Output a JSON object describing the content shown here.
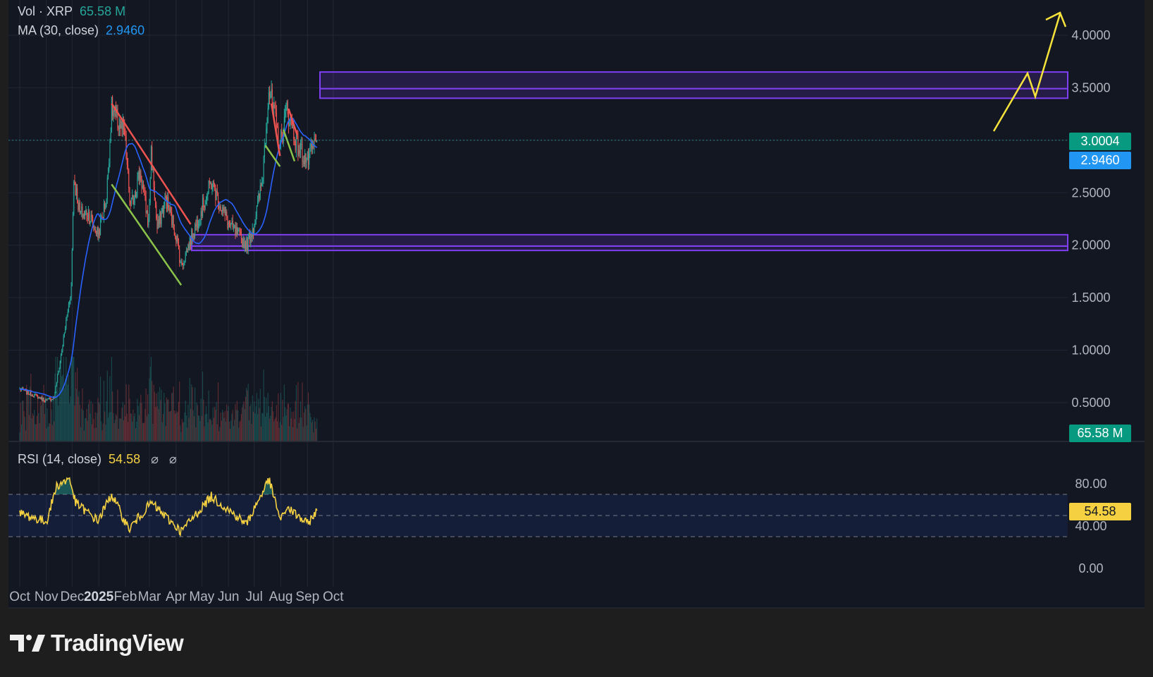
{
  "header": {
    "vol_label": "Vol · XRP",
    "vol_value": "65.58 M",
    "ma_label": "MA (30, close)",
    "ma_value": "2.9460",
    "rsi_label": "RSI (14, close)",
    "rsi_value": "54.58",
    "rsi_extra_1": "⌀",
    "rsi_extra_2": "⌀"
  },
  "branding": {
    "logo_text": "TradingView"
  },
  "colors": {
    "background": "#131722",
    "up": "#26a69a",
    "down": "#ef5350",
    "ma": "#2962ff",
    "zone": "#7e3ff2",
    "rsi": "#f5d142",
    "wedge_upper": "#ef5350",
    "wedge_lower": "#8bc34a",
    "projection": "#f5e33b"
  },
  "chart_data": [
    {
      "type": "candlestick",
      "symbol": "XRP",
      "x_ticks": [
        "Oct",
        "Nov",
        "Dec",
        "2025",
        "Feb",
        "Mar",
        "Apr",
        "May",
        "Jun",
        "Jul",
        "Aug",
        "Sep",
        "Oct"
      ],
      "y_ticks": [
        "4.0000",
        "3.5000",
        "2.5000",
        "2.0000",
        "1.5000",
        "1.0000",
        "0.5000"
      ],
      "ylim": [
        0.2,
        4.2
      ],
      "close_key_points": [
        {
          "date": "2024-10-01",
          "close": 0.63
        },
        {
          "date": "2024-11-01",
          "close": 0.52
        },
        {
          "date": "2024-11-10",
          "close": 0.55
        },
        {
          "date": "2024-11-20",
          "close": 1.05
        },
        {
          "date": "2024-11-30",
          "close": 1.6
        },
        {
          "date": "2024-12-03",
          "close": 2.65
        },
        {
          "date": "2024-12-10",
          "close": 2.3
        },
        {
          "date": "2024-12-20",
          "close": 2.3
        },
        {
          "date": "2024-12-31",
          "close": 2.1
        },
        {
          "date": "2025-01-10",
          "close": 2.45
        },
        {
          "date": "2025-01-16",
          "close": 3.3
        },
        {
          "date": "2025-01-31",
          "close": 3.05
        },
        {
          "date": "2025-02-07",
          "close": 2.35
        },
        {
          "date": "2025-02-18",
          "close": 2.7
        },
        {
          "date": "2025-02-28",
          "close": 2.2
        },
        {
          "date": "2025-03-03",
          "close": 2.9
        },
        {
          "date": "2025-03-10",
          "close": 2.15
        },
        {
          "date": "2025-03-20",
          "close": 2.45
        },
        {
          "date": "2025-04-01",
          "close": 2.1
        },
        {
          "date": "2025-04-07",
          "close": 1.8
        },
        {
          "date": "2025-04-20",
          "close": 2.1
        },
        {
          "date": "2025-05-12",
          "close": 2.6
        },
        {
          "date": "2025-06-01",
          "close": 2.2
        },
        {
          "date": "2025-06-22",
          "close": 2.0
        },
        {
          "date": "2025-07-01",
          "close": 2.2
        },
        {
          "date": "2025-07-10",
          "close": 2.6
        },
        {
          "date": "2025-07-18",
          "close": 3.5
        },
        {
          "date": "2025-07-31",
          "close": 2.95
        },
        {
          "date": "2025-08-08",
          "close": 3.3
        },
        {
          "date": "2025-08-20",
          "close": 2.95
        },
        {
          "date": "2025-09-01",
          "close": 2.8
        },
        {
          "date": "2025-09-12",
          "close": 3.0
        }
      ],
      "price_labels": [
        {
          "text": "3.0004",
          "color": "#089981"
        },
        {
          "text": "2.9460",
          "color": "#2196f3"
        }
      ],
      "volume_label": "65.58 M",
      "zones": [
        {
          "name": "resistance",
          "from": 3.4,
          "to": 3.65
        },
        {
          "name": "support",
          "from": 1.95,
          "to": 2.1
        }
      ],
      "grid": true
    },
    {
      "type": "line",
      "name": "RSI",
      "y_ticks": [
        "80.00",
        "40.00",
        "0.00"
      ],
      "ylim": [
        0,
        100
      ],
      "levels": [
        70,
        50,
        30
      ],
      "last_value": "54.58",
      "key_points": [
        {
          "date": "2024-10-01",
          "value": 52
        },
        {
          "date": "2024-11-01",
          "value": 44
        },
        {
          "date": "2024-11-13",
          "value": 78
        },
        {
          "date": "2024-11-28",
          "value": 85
        },
        {
          "date": "2024-12-05",
          "value": 62
        },
        {
          "date": "2024-12-31",
          "value": 45
        },
        {
          "date": "2025-01-16",
          "value": 70
        },
        {
          "date": "2025-02-05",
          "value": 37
        },
        {
          "date": "2025-03-03",
          "value": 62
        },
        {
          "date": "2025-04-07",
          "value": 35
        },
        {
          "date": "2025-05-12",
          "value": 68
        },
        {
          "date": "2025-06-22",
          "value": 42
        },
        {
          "date": "2025-07-18",
          "value": 84
        },
        {
          "date": "2025-08-01",
          "value": 45
        },
        {
          "date": "2025-08-08",
          "value": 58
        },
        {
          "date": "2025-09-01",
          "value": 42
        },
        {
          "date": "2025-09-12",
          "value": 54.58
        }
      ]
    }
  ]
}
